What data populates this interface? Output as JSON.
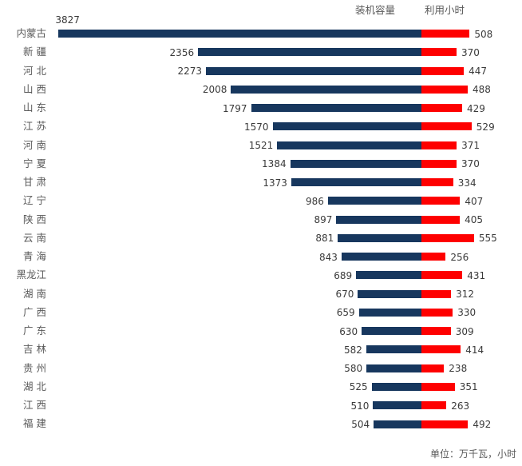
{
  "chart_data": {
    "type": "bar",
    "subtype": "butterfly-tornado-horizontal",
    "title": "",
    "legend": {
      "capacity": "装机容量",
      "hours": "利用小时",
      "position": "top-right"
    },
    "footer_note": "单位：万千瓦，小时",
    "categories": [
      "内蒙古",
      "新 疆",
      "河 北",
      "山 西",
      "山 东",
      "江 苏",
      "河 南",
      "宁 夏",
      "甘 肃",
      "辽 宁",
      "陕 西",
      "云 南",
      "青 海",
      "黑龙江",
      "湖 南",
      "广 西",
      "广 东",
      "吉 林",
      "贵 州",
      "湖 北",
      "江 西",
      "福 建"
    ],
    "series": [
      {
        "name": "装机容量",
        "direction": "left",
        "color": "#17375E",
        "values": [
          3827,
          2356,
          2273,
          2008,
          1797,
          1570,
          1521,
          1384,
          1373,
          986,
          897,
          881,
          843,
          689,
          670,
          659,
          630,
          582,
          580,
          525,
          510,
          504
        ]
      },
      {
        "name": "利用小时",
        "direction": "right",
        "color": "#FE0000",
        "values": [
          508,
          370,
          447,
          488,
          429,
          529,
          371,
          370,
          334,
          407,
          405,
          555,
          256,
          431,
          312,
          330,
          309,
          414,
          238,
          351,
          263,
          492
        ]
      }
    ],
    "axis": {
      "capacity_max": 3827,
      "hours_max": 555,
      "grid": false,
      "value_labels": true
    },
    "xlabel": "",
    "ylabel": ""
  }
}
